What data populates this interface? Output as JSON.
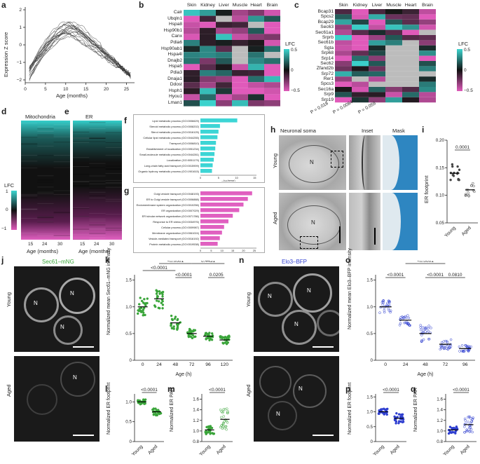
{
  "panels": {
    "a": "a",
    "b": "b",
    "c": "c",
    "d": "d",
    "e": "e",
    "f": "f",
    "g": "g",
    "h": "h",
    "i": "i",
    "j": "j",
    "k": "k",
    "l": "l",
    "m": "m",
    "n": "n",
    "o": "o",
    "p": "p",
    "q": "q"
  },
  "colors": {
    "teal": "#3cd6d0",
    "magenta": "#e05aba",
    "dark": "#1a1a1a",
    "gray": "#bcbcbc",
    "blue": "#2f3fd0",
    "green": "#3aa53a",
    "bar": "#3dd5d5",
    "bar_pink": "#e060c0",
    "em_blue": "#2e86c1"
  },
  "panel_a": {
    "ylabel": "Expression Z score",
    "xlabel": "Age (months)",
    "xticks": [
      "0",
      "5",
      "10",
      "15",
      "20",
      "25"
    ],
    "yticks": [
      "2",
      "1",
      "0",
      "−1",
      "−2"
    ]
  },
  "panel_b": {
    "tissues": [
      "Skin",
      "Kidney",
      "Liver",
      "Muscle",
      "Heart",
      "Brain"
    ],
    "genes": [
      "Calr",
      "Ubqln1",
      "Hspa8",
      "Hsp90b1",
      "Canx",
      "Pdia6",
      "Hsp90ab1",
      "Hspa4l",
      "Dnajb2",
      "Hspa5",
      "Pdia3",
      "Dnaja1",
      "Ddost",
      "Hsph1",
      "Hyou1",
      "Lman1"
    ]
  },
  "panel_c": {
    "tissues": [
      "Skin",
      "Kidney",
      "Liver",
      "Muscle",
      "Heart",
      "Brain"
    ],
    "genes": [
      "Bcap31",
      "Spcs2",
      "Bcap29",
      "Sec63",
      "Sec61a1",
      "Srprb",
      "Sec61b",
      "Sgta",
      "Srp68",
      "Srp14",
      "Sec62",
      "Zfand2b",
      "Srp72",
      "Rer1",
      "Spcs3",
      "Sec16a",
      "Srp9",
      "Srp19"
    ],
    "pvalues": [
      "P = 0.018",
      "P = 0.0084",
      "P = 0.059"
    ]
  },
  "legend_lfc": {
    "title": "LFC",
    "ticks": [
      "0.5",
      "0",
      "−0.5"
    ]
  },
  "legend_lfc_d": {
    "title": "LFC",
    "ticks": [
      "1",
      "0",
      "−1"
    ]
  },
  "panel_d": {
    "title": "Mitochondria"
  },
  "panel_e": {
    "title": "ER"
  },
  "panel_de": {
    "xticks": [
      "15",
      "24",
      "30"
    ],
    "xlabel": "Age (months)"
  },
  "panel_f": {
    "xlabel": "−log(FDR)",
    "xticks": [
      "0",
      "5",
      "10",
      "15"
    ],
    "terms": [
      "Lipid metabolic process (GO:0006629)",
      "Steroid metabolic process (GO:0008202)",
      "Sterol metabolic process (GO:0016125)",
      "Cellular lipid metabolic process (GO:0044255)",
      "Transport (GO:0006810)",
      "Establishment of localization (GO:0051234)",
      "Small-molecule metabolic process (GO:0044281)",
      "Localization (GO:0051179)",
      "Long-chain fatty acid transport (GO:0015909)",
      "Organic hydroxy metabolic process (GO:1901615)"
    ],
    "values": [
      10.2,
      5.4,
      5.0,
      4.7,
      4.3,
      4.1,
      3.9,
      3.7,
      3.4,
      3.2
    ]
  },
  "panel_g": {
    "xlabel": "−log(FDR)",
    "xticks": [
      "0",
      "5",
      "10",
      "15",
      "20",
      "25"
    ],
    "terms": [
      "Golgi vesicle transport (GO:0048193)",
      "ER to Golgi vesicle transport (GO:0006888)",
      "Endomembrane system organization (GO:0010256)",
      "ER organization (GO:0007029)",
      "ER tubular network organization (GO:0071786)",
      "Response to ER stress (GO:0034976)",
      "Cellular process (GO:0009987)",
      "Membrane organization (GO:0061024)",
      "Vesicle-mediated transport (GO:0016192)",
      "Protein metabolic process (GO:0019538)"
    ],
    "values": [
      24,
      22,
      20,
      18,
      15,
      13,
      11,
      10,
      9,
      8
    ]
  },
  "panel_h": {
    "col1": "Neuronal soma",
    "col2": "Inset",
    "col3": "Mask",
    "row1": "Young",
    "row2": "Aged",
    "nucleus": "N"
  },
  "panel_i": {
    "ylabel": "ER footprint",
    "yticks": [
      "0.20",
      "0.15",
      "0.10",
      "0.05"
    ],
    "groups": [
      "Young",
      "Aged"
    ],
    "pvalue": "0.0001",
    "means": [
      0.14,
      0.11
    ]
  },
  "panel_j": {
    "title": "Sec61–mNG",
    "row1": "Young",
    "row2": "Aged",
    "nucleus": "N"
  },
  "panel_k": {
    "ylabel": "Normalized mean Sec61–mNG intensity",
    "xlabel": "Age (h)",
    "xticks": [
      "0",
      "24",
      "48",
      "72",
      "96",
      "120"
    ],
    "yticks": [
      "1.5",
      "1.0",
      "0.5",
      "0"
    ],
    "means": [
      1.0,
      1.15,
      0.7,
      0.5,
      0.45,
      0.38
    ],
    "pvals": [
      "<0.0001",
      "<0.0001",
      "0.4431",
      "<0.0001",
      "0.0205"
    ]
  },
  "panel_l": {
    "ylabel": "Normalized ER footprint",
    "yticks": [
      "1.0",
      "0.5",
      "0"
    ],
    "groups": [
      "Young",
      "Aged"
    ],
    "pvalue": "<0.0001",
    "means": [
      1.0,
      0.75
    ]
  },
  "panel_m": {
    "ylabel": "Normalized ER PAR",
    "yticks": [
      "1.6",
      "1.4",
      "1.2",
      "1.0",
      "0.8"
    ],
    "groups": [
      "Young",
      "Aged"
    ],
    "pvalue": "<0.0001",
    "means": [
      1.02,
      1.22
    ]
  },
  "panel_n": {
    "title": "Elo3–BFP",
    "row1": "Young",
    "row2": "Aged",
    "nucleus": "N"
  },
  "panel_o": {
    "ylabel": "Normalized mean Elo3–BFP intensity",
    "xlabel": "Age (h)",
    "xticks": [
      "0",
      "24",
      "48",
      "72",
      "96"
    ],
    "yticks": [
      "1.5",
      "1.0",
      "0.5",
      "0"
    ],
    "means": [
      1.0,
      0.75,
      0.5,
      0.3,
      0.22
    ],
    "pvals": [
      "<0.0001",
      "<0.0001",
      "<0.0001",
      "0.0810"
    ]
  },
  "panel_p": {
    "ylabel": "Normalized ER footprint",
    "yticks": [
      "1.5",
      "1.0",
      "0.5",
      "0"
    ],
    "groups": [
      "Young",
      "Aged"
    ],
    "pvalue": "<0.0001",
    "means": [
      1.0,
      0.78
    ]
  },
  "panel_q": {
    "ylabel": "Normalized ER PAR",
    "yticks": [
      "1.6",
      "1.4",
      "1.2",
      "1.0",
      "0.8"
    ],
    "groups": [
      "Young",
      "Aged"
    ],
    "pvalue": "<0.0001",
    "means": [
      1.02,
      1.12
    ]
  }
}
